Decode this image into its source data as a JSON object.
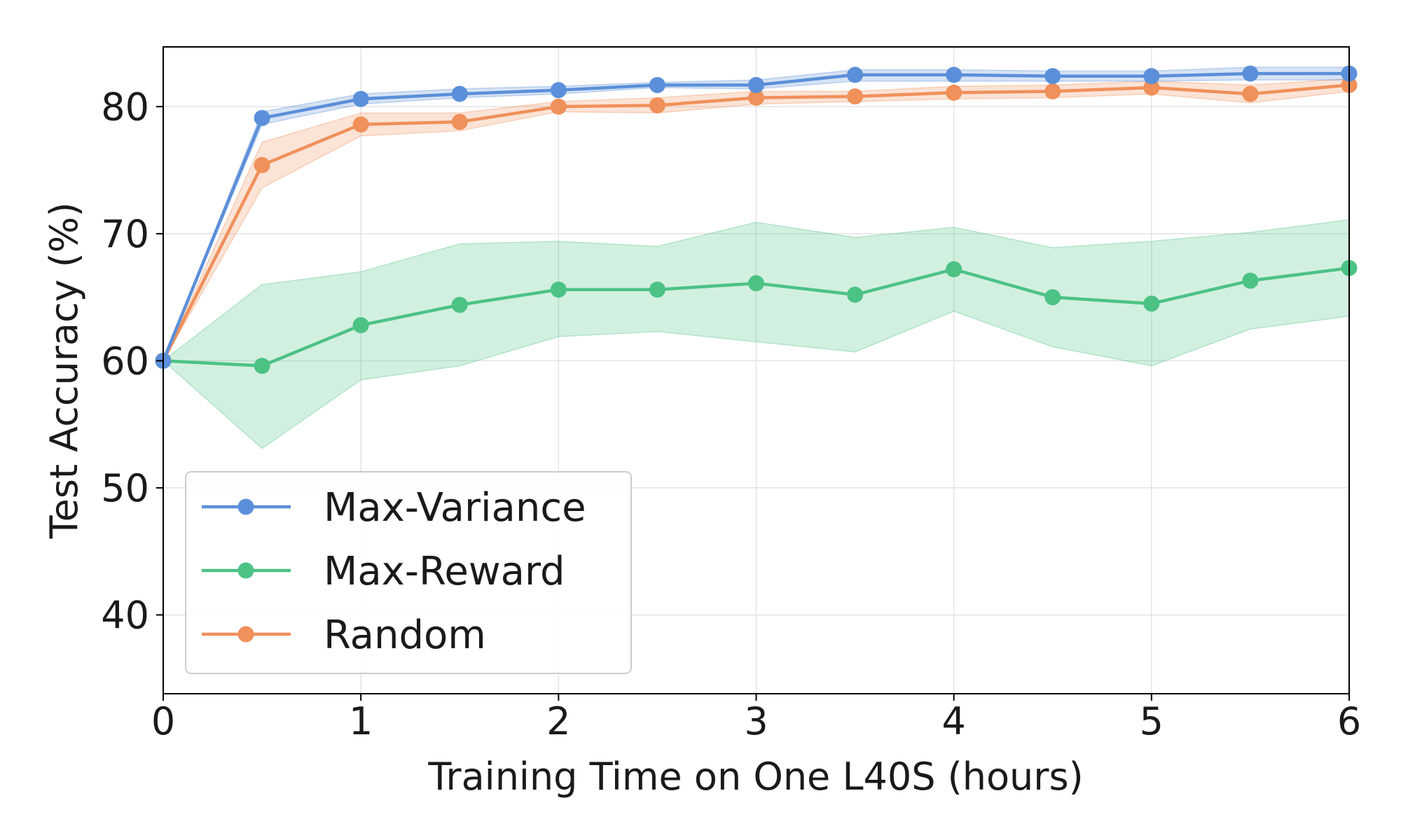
{
  "chart_data": {
    "type": "line",
    "xlabel": "Training Time on One L40S (hours)",
    "ylabel": "Test Accuracy (%)",
    "xlim": [
      0,
      6
    ],
    "ylim": [
      33.8,
      84.7
    ],
    "xticks": [
      0,
      1,
      2,
      3,
      4,
      5,
      6
    ],
    "yticks": [
      40,
      50,
      60,
      70,
      80
    ],
    "grid": true,
    "legend_position": "lower-left",
    "x": [
      0,
      0.5,
      1,
      1.5,
      2,
      2.5,
      3,
      3.5,
      4,
      4.5,
      5,
      5.5,
      6
    ],
    "series": [
      {
        "name": "Max-Variance",
        "color": "#5b8fd9",
        "values": [
          60.0,
          79.1,
          80.6,
          81.0,
          81.3,
          81.7,
          81.7,
          82.5,
          82.5,
          82.4,
          82.4,
          82.6,
          82.6
        ],
        "band_low": [
          60.0,
          78.6,
          80.2,
          80.7,
          81.0,
          81.5,
          81.4,
          82.0,
          82.0,
          82.0,
          82.0,
          82.1,
          82.1
        ],
        "band_high": [
          60.0,
          79.6,
          81.0,
          81.4,
          81.6,
          81.9,
          82.1,
          82.9,
          82.9,
          82.8,
          82.8,
          83.1,
          83.1
        ]
      },
      {
        "name": "Max-Reward",
        "color": "#4cc285",
        "values": [
          60.0,
          59.6,
          62.8,
          64.4,
          65.6,
          65.6,
          66.1,
          65.2,
          67.2,
          65.0,
          64.5,
          66.3,
          67.3
        ],
        "band_low": [
          60.0,
          53.1,
          58.5,
          59.6,
          61.9,
          62.3,
          61.5,
          60.7,
          63.9,
          61.1,
          59.6,
          62.5,
          63.5
        ],
        "band_high": [
          60.0,
          66.0,
          67.0,
          69.2,
          69.4,
          69.0,
          70.9,
          69.7,
          70.5,
          68.9,
          69.4,
          70.1,
          71.1
        ]
      },
      {
        "name": "Random",
        "color": "#f0905a",
        "values": [
          60.0,
          75.4,
          78.6,
          78.8,
          80.0,
          80.1,
          80.7,
          80.8,
          81.1,
          81.2,
          81.5,
          81.0,
          81.7
        ],
        "band_low": [
          60.0,
          73.6,
          77.7,
          78.1,
          79.6,
          79.5,
          80.2,
          80.4,
          80.6,
          80.7,
          81.0,
          80.3,
          81.2
        ],
        "band_high": [
          60.0,
          77.2,
          79.5,
          79.5,
          80.4,
          80.7,
          81.2,
          81.2,
          81.6,
          81.7,
          82.0,
          81.7,
          82.2
        ]
      }
    ]
  }
}
